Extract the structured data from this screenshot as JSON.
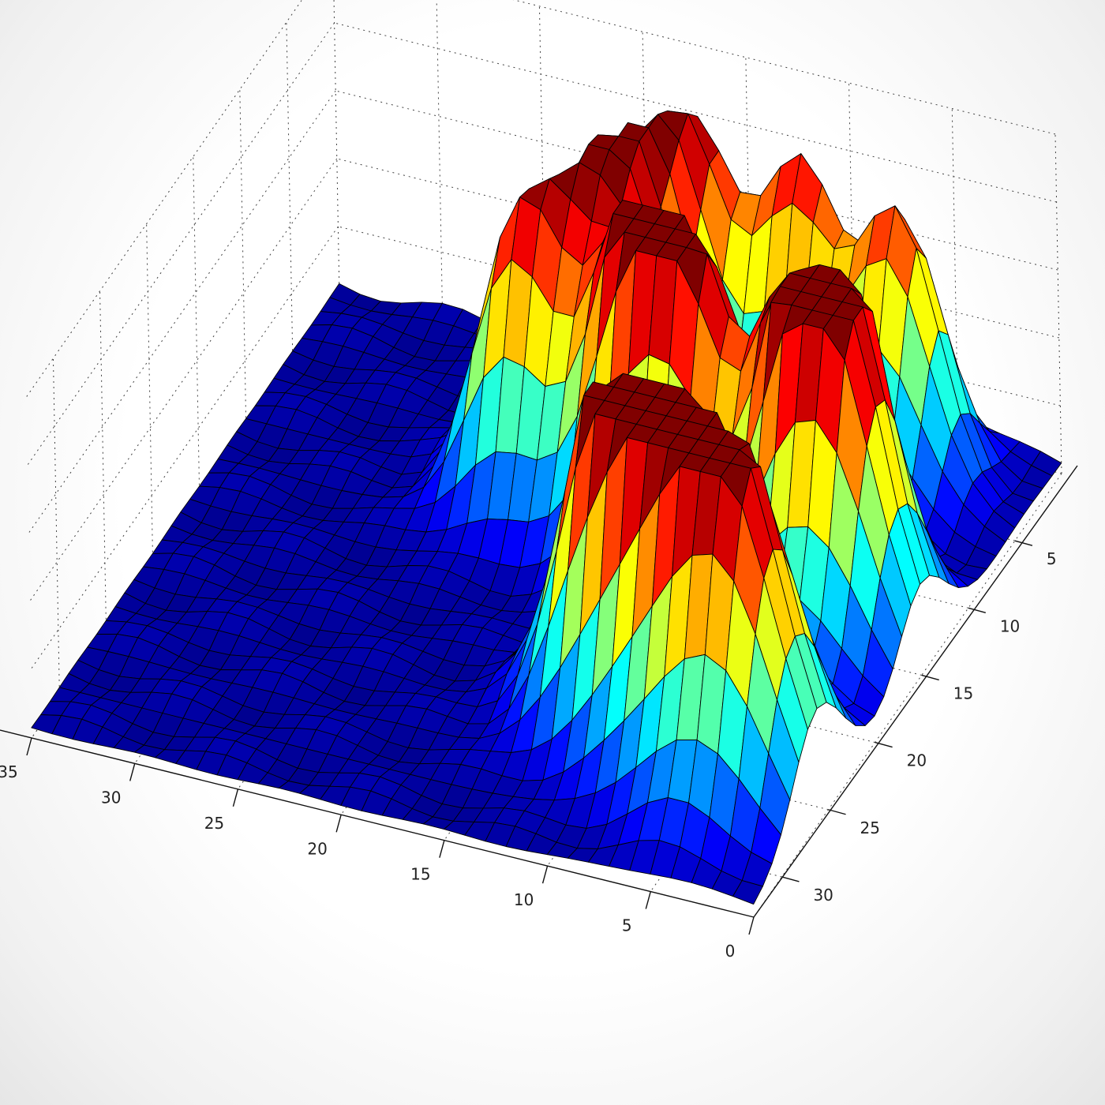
{
  "chart_data": {
    "type": "surface",
    "title": "",
    "xlabel": "",
    "ylabel": "",
    "zlabel": "",
    "colormap": "jet",
    "grid": true,
    "x_axis": {
      "range": [
        0,
        35
      ],
      "ticks": [
        "0",
        "5",
        "10",
        "15",
        "20",
        "25",
        "30",
        "35"
      ]
    },
    "y_axis": {
      "range": [
        0,
        33
      ],
      "ticks": [
        "5",
        "10",
        "15",
        "20",
        "25",
        "30"
      ]
    },
    "z_range": [
      0,
      1
    ],
    "grid_size": {
      "nx": 35,
      "ny": 33
    },
    "peaks": [
      {
        "x": 4,
        "y": 26,
        "height": 1.0,
        "spread": 2.6
      },
      {
        "x": 8,
        "y": 24,
        "height": 0.9,
        "spread": 2.3
      },
      {
        "x": 11,
        "y": 23,
        "height": 0.95,
        "spread": 2.3
      },
      {
        "x": 4,
        "y": 15,
        "height": 0.9,
        "spread": 2.4
      },
      {
        "x": 6,
        "y": 13,
        "height": 0.85,
        "spread": 2.2
      },
      {
        "x": 18,
        "y": 7,
        "height": 0.95,
        "spread": 2.3
      },
      {
        "x": 12,
        "y": 13,
        "height": 0.85,
        "spread": 2.2
      },
      {
        "x": 15,
        "y": 12,
        "height": 0.85,
        "spread": 2.1
      },
      {
        "x": 21,
        "y": 11,
        "height": 0.8,
        "spread": 2.0
      },
      {
        "x": 6,
        "y": 4,
        "height": 0.8,
        "spread": 2.0
      },
      {
        "x": 11,
        "y": 3,
        "height": 0.8,
        "spread": 1.9
      },
      {
        "x": 16,
        "y": 3,
        "height": 0.75,
        "spread": 1.9
      }
    ]
  }
}
